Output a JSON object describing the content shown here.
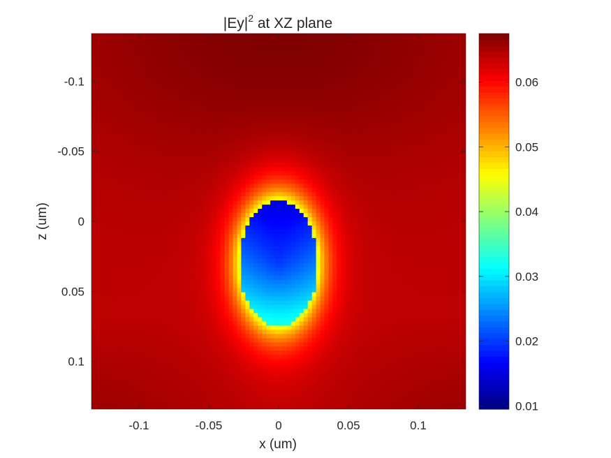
{
  "chart_data": {
    "type": "heatmap",
    "title_main": "|Ey|",
    "title_sup": "2",
    "title_rest": " at XZ plane",
    "xlabel": "x (um)",
    "ylabel": "z (um)",
    "xlim": [
      -0.134,
      0.134
    ],
    "ylim": [
      -0.134,
      0.134
    ],
    "y_reversed": true,
    "x_ticks": [
      -0.1,
      -0.05,
      0,
      0.05,
      0.1
    ],
    "x_tick_labels": [
      "-0.1",
      "-0.05",
      "0",
      "0.05",
      "0.1"
    ],
    "y_ticks": [
      -0.1,
      -0.05,
      0,
      0.05,
      0.1
    ],
    "y_tick_labels": [
      "-0.1",
      "-0.05",
      "0",
      "0.05",
      "0.1"
    ],
    "colormap": "jet",
    "clim": [
      0.0095,
      0.0675
    ],
    "colorbar_ticks": [
      0.01,
      0.02,
      0.03,
      0.04,
      0.05,
      0.06
    ],
    "colorbar_tick_labels": [
      "0.01",
      "0.02",
      "0.03",
      "0.04",
      "0.05",
      "0.06"
    ],
    "field_features": {
      "background_level": 0.064,
      "upper_max_level": 0.0675,
      "lower_corner_level": 0.066,
      "particle_center": [
        0,
        0.03
      ],
      "particle_radius_x": 0.028,
      "particle_radius_z": 0.045,
      "particle_min_level": 0.011,
      "particle_bottom_level": 0.029
    }
  }
}
